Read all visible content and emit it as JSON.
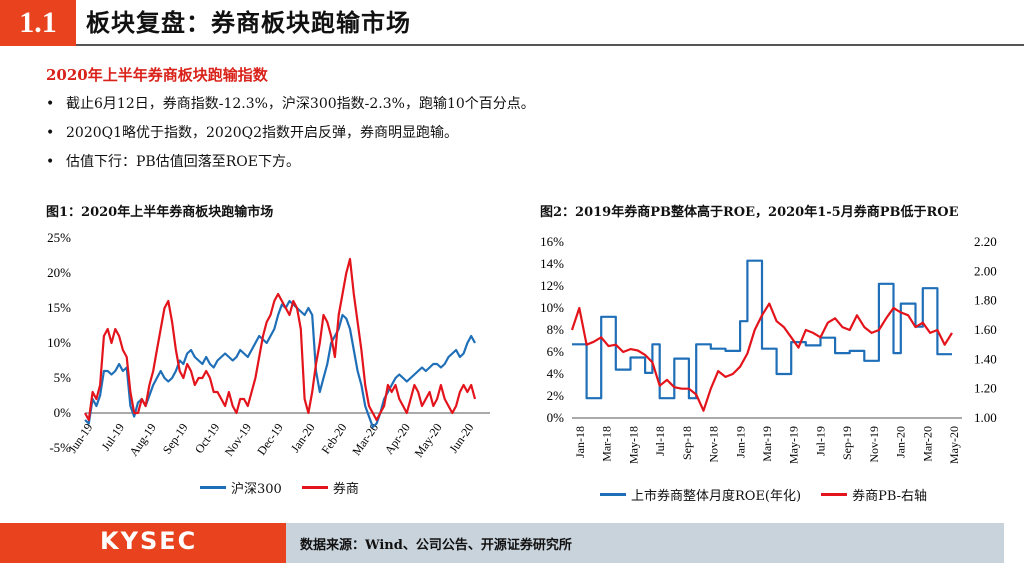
{
  "header": {
    "section_number": "1.1",
    "title": "板块复盘：券商板块跑输市场"
  },
  "summary": {
    "heading": "2020年上半年券商板块跑输指数",
    "bullets": [
      "截止6月12日，券商指数-12.3%，沪深300指数-2.3%，跑输10个百分点。",
      "2020Q1略优于指数，2020Q2指数开启反弹，券商明显跑输。",
      "估值下行：PB估值回落至ROE下方。"
    ]
  },
  "footer": {
    "logo": "KYSEC",
    "source": "数据来源：Wind、公司公告、开源证券研究所"
  },
  "colors": {
    "accent": "#e8431e",
    "blue": "#1f6fb8",
    "red": "#e3141b"
  },
  "chart_data": [
    {
      "type": "line",
      "title": "图1：2020年上半年券商板块跑输市场",
      "x_ticks": [
        "Jun-19",
        "Jul-19",
        "Aug-19",
        "Sep-19",
        "Oct-19",
        "Nov-19",
        "Dec-19",
        "Jan-20",
        "Feb-20",
        "Mar-20",
        "Apr-20",
        "May-20",
        "Jun-20"
      ],
      "y_ticks": [
        "-5%",
        "0%",
        "5%",
        "10%",
        "15%",
        "20%",
        "25%"
      ],
      "ylim": [
        -5,
        25
      ],
      "y_unit": "%",
      "series": [
        {
          "name": "沪深300",
          "color": "#1f6fb8",
          "values": [
            -1,
            -1.5,
            2,
            1,
            2.5,
            6,
            6,
            5.5,
            6,
            7,
            6,
            6.5,
            1,
            -0.5,
            1.5,
            2,
            1,
            2.5,
            4,
            5,
            6,
            5,
            4.5,
            5,
            6,
            7.5,
            7,
            8.5,
            9,
            8,
            7.5,
            7,
            8,
            7,
            6.5,
            7.5,
            8,
            8.5,
            8,
            7.5,
            8,
            9,
            8.5,
            8,
            9,
            10,
            11,
            10.5,
            10,
            11,
            12,
            14,
            15.5,
            15,
            16,
            15.5,
            15,
            14.5,
            14,
            15,
            14,
            6,
            3,
            5,
            7,
            10,
            11,
            12,
            14,
            13.5,
            12,
            9,
            6,
            4,
            1,
            -0.5,
            -2,
            -1.5,
            0,
            2,
            3,
            4,
            5,
            5.5,
            5,
            4.5,
            5,
            5.5,
            6,
            6.5,
            6,
            6.5,
            7,
            7,
            6.5,
            7,
            8,
            8.5,
            9,
            8,
            8.5,
            10,
            11,
            10
          ]
        },
        {
          "name": "券商",
          "color": "#e3141b",
          "values": [
            0,
            -1,
            3,
            2,
            4,
            11,
            12,
            10,
            12,
            11,
            9,
            8,
            3,
            0,
            0,
            2,
            1,
            4,
            6,
            9,
            12,
            15,
            16,
            13,
            9,
            6,
            5,
            7,
            6,
            4,
            5,
            5,
            6,
            5,
            3,
            3,
            2,
            1,
            3,
            1,
            0,
            2,
            2,
            1,
            3,
            5,
            8,
            11,
            13,
            14,
            16,
            17,
            16,
            15,
            14,
            16,
            15,
            12,
            2,
            0,
            3,
            7,
            10,
            14,
            13,
            11,
            8,
            14,
            17,
            20,
            22,
            17,
            13,
            9,
            4,
            1,
            0,
            -1,
            0,
            1,
            4,
            3,
            4,
            2,
            1,
            0,
            2,
            4,
            3,
            1,
            2,
            3,
            1,
            2,
            4,
            2,
            1,
            0,
            1,
            3,
            4,
            3,
            4,
            2
          ]
        }
      ]
    },
    {
      "type": "line",
      "title": "图2：2019年券商PB整体高于ROE，2020年1-5月券商PB低于ROE",
      "x_ticks": [
        "Jan-18",
        "Mar-18",
        "May-18",
        "Jul-18",
        "Sep-18",
        "Nov-18",
        "Jan-19",
        "Mar-19",
        "May-19",
        "Jul-19",
        "Sep-19",
        "Nov-19",
        "Jan-20",
        "Mar-20",
        "May-20"
      ],
      "y_left_ticks": [
        "0%",
        "2%",
        "4%",
        "6%",
        "8%",
        "10%",
        "12%",
        "14%",
        "16%"
      ],
      "y_right_ticks": [
        "1.00",
        "1.20",
        "1.40",
        "1.60",
        "1.80",
        "2.00",
        "2.20"
      ],
      "y_left_lim": [
        0,
        16
      ],
      "y_right_lim": [
        1.0,
        2.2
      ],
      "series": [
        {
          "name": "上市券商整体月度ROE(年化)",
          "axis": "left",
          "color": "#1f6fb8",
          "values": [
            6.7,
            6.7,
            1.8,
            1.8,
            9.2,
            9.2,
            4.4,
            4.4,
            5.5,
            5.5,
            4.1,
            6.7,
            1.8,
            1.8,
            5.4,
            5.4,
            1.8,
            6.7,
            6.7,
            6.3,
            6.3,
            6.1,
            6.1,
            8.8,
            14.3,
            14.3,
            6.3,
            6.3,
            4.0,
            4.0,
            6.9,
            6.9,
            6.6,
            6.6,
            7.3,
            7.3,
            5.9,
            5.9,
            6.1,
            6.1,
            5.2,
            5.2,
            12.2,
            12.2,
            5.9,
            10.4,
            10.4,
            8.3,
            11.8,
            11.8,
            5.8,
            5.8
          ]
        },
        {
          "name": "券商PB-右轴",
          "axis": "right",
          "color": "#e3141b",
          "values": [
            1.6,
            1.75,
            1.5,
            1.52,
            1.55,
            1.49,
            1.5,
            1.45,
            1.47,
            1.46,
            1.43,
            1.38,
            1.22,
            1.26,
            1.21,
            1.2,
            1.2,
            1.16,
            1.05,
            1.2,
            1.32,
            1.28,
            1.3,
            1.35,
            1.44,
            1.6,
            1.7,
            1.78,
            1.66,
            1.62,
            1.55,
            1.48,
            1.6,
            1.58,
            1.55,
            1.65,
            1.68,
            1.62,
            1.6,
            1.7,
            1.62,
            1.58,
            1.6,
            1.68,
            1.75,
            1.72,
            1.7,
            1.62,
            1.65,
            1.58,
            1.6,
            1.5,
            1.58
          ]
        }
      ]
    }
  ]
}
